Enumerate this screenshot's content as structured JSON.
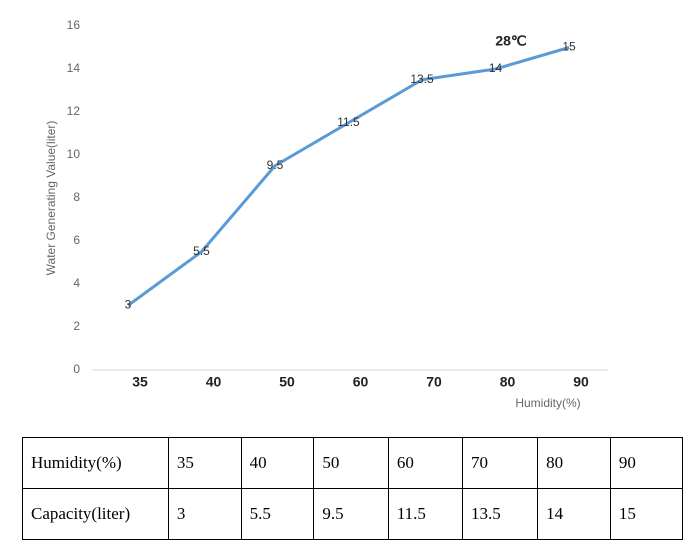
{
  "chart_data": {
    "type": "line",
    "y_label": "Water Generating Value(liter)",
    "x_label": "Humidity(%)",
    "annotation": "28℃",
    "categories": [
      "35",
      "40",
      "50",
      "60",
      "70",
      "80",
      "90"
    ],
    "values": [
      3,
      5.5,
      9.5,
      11.5,
      13.5,
      14,
      15
    ],
    "color": "#5b9bd5",
    "ylim": [
      0,
      16
    ],
    "yticks": [
      0,
      2,
      4,
      6,
      8,
      10,
      12,
      14,
      16
    ],
    "grid": false
  },
  "table": {
    "rows": [
      [
        "Humidity(%)",
        "35",
        "40",
        "50",
        "60",
        "70",
        "80",
        "90"
      ],
      [
        "Capacity(liter)",
        "3",
        "5.5",
        "9.5",
        "11.5",
        "13.5",
        "14",
        "15"
      ]
    ]
  }
}
